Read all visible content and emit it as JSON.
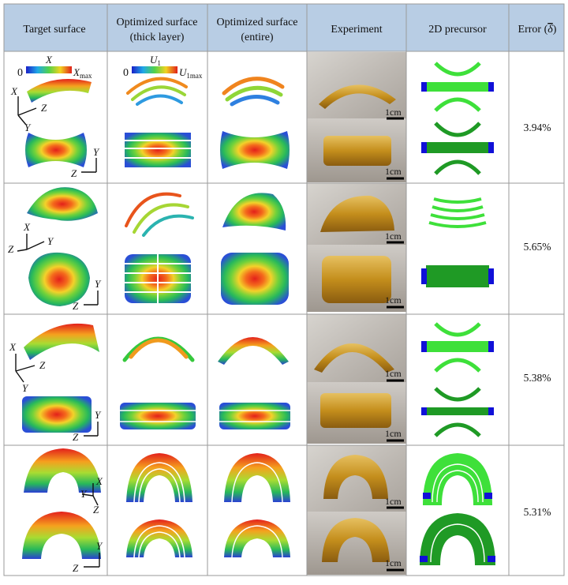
{
  "header": {
    "col1": "Target surface",
    "col2a": "Optimized surface",
    "col2b": "(thick layer)",
    "col3a": "Optimized surface",
    "col3b": "(entire)",
    "col4": "Experiment",
    "col5": "2D precursor",
    "col6": "Error (",
    "col6_sym": "δ",
    "col6_end": ")"
  },
  "legend1": {
    "min": "0",
    "var": "X",
    "max_base": "X",
    "max_sub": "max"
  },
  "legend2": {
    "min": "0",
    "var_base": "U",
    "var_sub": "1",
    "max_base": "U",
    "max_sub": "1max"
  },
  "axes": {
    "x": "X",
    "y": "Y",
    "z": "Z"
  },
  "scale_bar": "1cm",
  "rows": [
    {
      "error": "3.94%"
    },
    {
      "error": "5.65%"
    },
    {
      "error": "5.38%"
    },
    {
      "error": "5.31%"
    }
  ],
  "colors": {
    "header_bg": "#b8cde4",
    "grid": "#9a9a9a",
    "jet_red": "#e8281c",
    "jet_green": "#36c83c",
    "jet_blue": "#1a2ed0",
    "precursor_light": "#3ee03a",
    "precursor_dark": "#1f9a25",
    "precursor_tip": "#1010d8",
    "amber": "#c99a22"
  }
}
